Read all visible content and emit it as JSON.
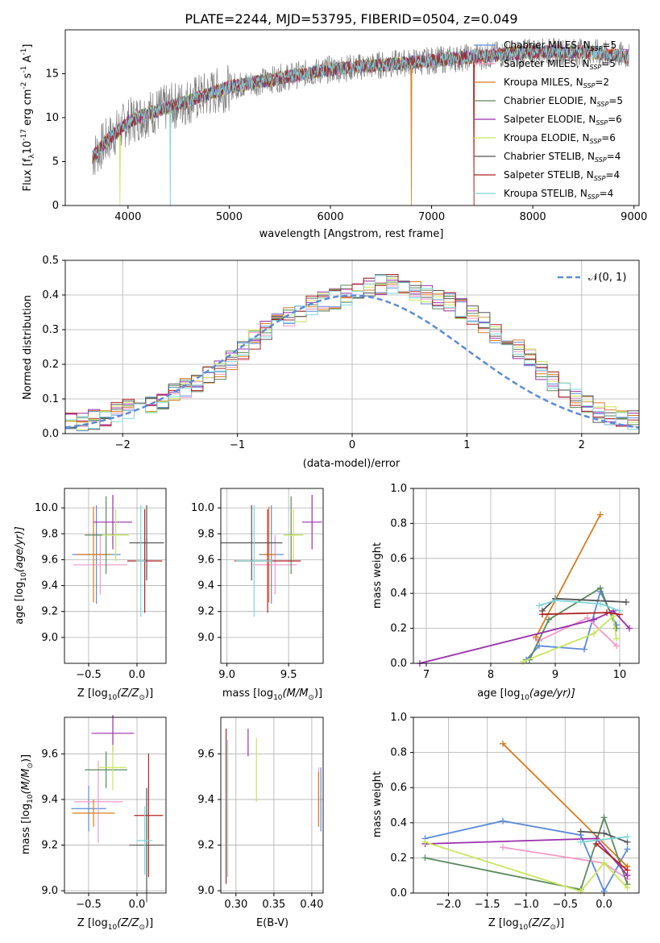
{
  "figure_title": "PLATE=2244, MJD=53795, FIBERID=0504, z=0.049",
  "colors": [
    "#5b8bd9",
    "#f299c8",
    "#d97c1c",
    "#5a8a5e",
    "#9b2fae",
    "#c8e65a",
    "#555555",
    "#b22222",
    "#7fd7d7"
  ],
  "chart_data": [
    {
      "type": "line",
      "name": "spectrum",
      "xlabel": "wavelength [Angstrom, rest frame]",
      "ylabel": "Flux [f",
      "ylabel_sub": "λ",
      "ylabel_mid": "10",
      "ylabel_sup1": "-17",
      "ylabel_tail": " erg cm",
      "ylabel_sup2": "-2",
      "ylabel_tail2": " s",
      "ylabel_sup3": "-1",
      "ylabel_tail3": " A",
      "ylabel_sup4": "-1",
      "ylabel_end": "]",
      "xlim": [
        3380,
        9050
      ],
      "ylim": [
        0,
        20
      ],
      "xticks": [
        "4000",
        "5000",
        "6000",
        "7000",
        "8000",
        "9000"
      ],
      "yticks": [
        "0",
        "5",
        "10",
        "15"
      ],
      "data_range_x": [
        3650,
        8950
      ],
      "grid": false,
      "legend_position": "top-right",
      "legend": [
        {
          "name": "Chabrier MILES, N",
          "sub": "SSP",
          "tail": "=5",
          "color": "#5b8bd9"
        },
        {
          "name": "Salpeter MILES, N",
          "sub": "SSP",
          "tail": "=5",
          "color": "#f299c8"
        },
        {
          "name": "Kroupa MILES, N",
          "sub": "SSP",
          "tail": "=2",
          "color": "#d97c1c"
        },
        {
          "name": "Chabrier ELODIE, N",
          "sub": "SSP",
          "tail": "=5",
          "color": "#5a8a5e"
        },
        {
          "name": "Salpeter ELODIE, N",
          "sub": "SSP",
          "tail": "=6",
          "color": "#9b2fae"
        },
        {
          "name": "Kroupa ELODIE, N",
          "sub": "SSP",
          "tail": "=6",
          "color": "#c8e65a"
        },
        {
          "name": "Chabrier STELIB, N",
          "sub": "SSP",
          "tail": "=4",
          "color": "#555555"
        },
        {
          "name": "Salpeter STELIB, N",
          "sub": "SSP",
          "tail": "=4",
          "color": "#b22222"
        },
        {
          "name": "Kroupa STELIB, N",
          "sub": "SSP",
          "tail": "=4",
          "color": "#7fd7d7"
        }
      ],
      "model_cutoff_x": {
        "Kroupa ELODIE": 3920,
        "Kroupa STELIB": 4420,
        "Kroupa MILES": 6800,
        "Salpeter STELIB": 7420
      },
      "continuum": {
        "x": [
          3650,
          3800,
          4000,
          4200,
          4500,
          5000,
          5500,
          6000,
          6500,
          7000,
          7500,
          8000,
          8500,
          8950
        ],
        "y": [
          5.5,
          7.5,
          9.5,
          10.5,
          11.5,
          13.5,
          14.5,
          15.5,
          16.0,
          16.5,
          17.0,
          17.5,
          17.5,
          17.0
        ]
      }
    },
    {
      "type": "line",
      "name": "residual-histogram",
      "xlabel": "(data-model)/error",
      "ylabel": "Normed distribution",
      "xlim": [
        -2.5,
        2.5
      ],
      "ylim": [
        0,
        0.5
      ],
      "xticks": [
        "−2",
        "−1",
        "0",
        "1",
        "2"
      ],
      "yticks": [
        "0.0",
        "0.1",
        "0.2",
        "0.3",
        "0.4",
        "0.5"
      ],
      "grid": true,
      "legend_position": "top-right",
      "legend_label": "𝒩(0, 1)",
      "bin_width": 0.1,
      "bins_start": -2.5,
      "histogram": [
        0.03,
        0.03,
        0.04,
        0.05,
        0.06,
        0.07,
        0.07,
        0.08,
        0.1,
        0.12,
        0.13,
        0.15,
        0.17,
        0.18,
        0.21,
        0.24,
        0.27,
        0.3,
        0.32,
        0.34,
        0.35,
        0.37,
        0.38,
        0.39,
        0.4,
        0.41,
        0.42,
        0.43,
        0.43,
        0.42,
        0.41,
        0.4,
        0.39,
        0.38,
        0.36,
        0.34,
        0.32,
        0.29,
        0.26,
        0.24,
        0.22,
        0.18,
        0.15,
        0.13,
        0.1,
        0.08,
        0.06,
        0.05,
        0.05,
        0.04
      ]
    },
    {
      "type": "scatter",
      "name": "age-vs-Z",
      "xlabel": "Z [log",
      "xlabel_sub": "10",
      "xlabel_tail": "(Z/Z",
      "xlabel_sub2": "⊙",
      "xlabel_end": ")]",
      "ylabel": "age  [log",
      "ylabel_sub": "10",
      "ylabel_tail": "(age/yr)]",
      "xlim": [
        -0.75,
        0.3
      ],
      "ylim": [
        8.8,
        10.15
      ],
      "xticks": [
        "−0.5",
        "0.0"
      ],
      "xtick_values": [
        -0.5,
        0.0
      ],
      "yticks": [
        "9.0",
        "9.2",
        "9.4",
        "9.6",
        "9.8",
        "10.0"
      ],
      "ytick_values": [
        9.0,
        9.2,
        9.4,
        9.6,
        9.8,
        10.0
      ],
      "grid": true,
      "points": [
        {
          "x": -0.42,
          "xerr": 0.25,
          "y": 9.64,
          "yerr": 0.38,
          "c": 0
        },
        {
          "x": -0.38,
          "xerr": 0.28,
          "y": 9.56,
          "yerr": 0.23,
          "c": 1
        },
        {
          "x": -0.45,
          "xerr": 0.18,
          "y": 9.64,
          "yerr": 0.37,
          "c": 2
        },
        {
          "x": -0.32,
          "xerr": 0.22,
          "y": 9.79,
          "yerr": 0.3,
          "c": 3
        },
        {
          "x": -0.25,
          "xerr": 0.2,
          "y": 9.89,
          "yerr": 0.21,
          "c": 4
        },
        {
          "x": -0.22,
          "xerr": 0.14,
          "y": 9.79,
          "yerr": 0.2,
          "c": 5
        },
        {
          "x": 0.1,
          "xerr": 0.18,
          "y": 9.73,
          "yerr": 0.29,
          "c": 6
        },
        {
          "x": 0.08,
          "xerr": 0.18,
          "y": 9.59,
          "yerr": 0.4,
          "c": 7
        },
        {
          "x": 0.04,
          "xerr": 0.05,
          "y": 9.59,
          "yerr": 0.43,
          "c": 8
        }
      ]
    },
    {
      "type": "scatter",
      "name": "age-vs-mass",
      "xlabel": "mass [log",
      "xlabel_sub": "10",
      "xlabel_tail": "(M/M",
      "xlabel_sub2": "⊙",
      "xlabel_end": ")]",
      "xlim": [
        8.95,
        9.78
      ],
      "ylim": [
        8.8,
        10.15
      ],
      "xticks": [
        "9.0",
        "9.5"
      ],
      "xtick_values": [
        9.0,
        9.5
      ],
      "yticks": [
        "9.0",
        "9.2",
        "9.4",
        "9.6",
        "9.8",
        "10.0"
      ],
      "ytick_values": [
        9.0,
        9.2,
        9.4,
        9.6,
        9.8,
        10.0
      ],
      "grid": true,
      "points": [
        {
          "x": 9.36,
          "xerr": 0.1,
          "y": 9.64,
          "yerr": 0.38,
          "c": 0
        },
        {
          "x": 9.39,
          "xerr": 0.18,
          "y": 9.56,
          "yerr": 0.23,
          "c": 1
        },
        {
          "x": 9.34,
          "xerr": 0.06,
          "y": 9.64,
          "yerr": 0.37,
          "c": 2
        },
        {
          "x": 9.52,
          "xerr": 0.06,
          "y": 9.79,
          "yerr": 0.3,
          "c": 3
        },
        {
          "x": 9.69,
          "xerr": 0.08,
          "y": 9.89,
          "yerr": 0.21,
          "c": 4
        },
        {
          "x": 9.54,
          "xerr": 0.08,
          "y": 9.79,
          "yerr": 0.2,
          "c": 5
        },
        {
          "x": 9.2,
          "xerr": 0.25,
          "y": 9.73,
          "yerr": 0.29,
          "c": 6
        },
        {
          "x": 9.33,
          "xerr": 0.27,
          "y": 9.59,
          "yerr": 0.4,
          "c": 7
        },
        {
          "x": 9.22,
          "xerr": 0.15,
          "y": 9.59,
          "yerr": 0.43,
          "c": 8
        }
      ]
    },
    {
      "type": "line",
      "name": "mass-weight-vs-age",
      "xlabel": "age  [log",
      "xlabel_sub": "10",
      "xlabel_tail": "(age/yr)]",
      "ylabel": "mass weight",
      "xlim": [
        6.8,
        10.3
      ],
      "ylim": [
        0,
        1
      ],
      "xticks": [
        "7",
        "8",
        "9",
        "10"
      ],
      "xtick_values": [
        7,
        8,
        9,
        10
      ],
      "yticks": [
        "0.0",
        "0.2",
        "0.4",
        "0.6",
        "0.8",
        "1.0"
      ],
      "ytick_values": [
        0,
        0.2,
        0.4,
        0.6,
        0.8,
        1.0
      ],
      "grid": true,
      "series": [
        {
          "c": 0,
          "x": [
            8.55,
            8.75,
            9.45,
            9.7,
            9.95
          ],
          "y": [
            0.02,
            0.1,
            0.08,
            0.41,
            0.22
          ]
        },
        {
          "c": 1,
          "x": [
            8.7,
            8.75,
            9.5,
            9.95
          ],
          "y": [
            0.14,
            0.13,
            0.26,
            0.1
          ]
        },
        {
          "c": 2,
          "x": [
            8.7,
            9.7
          ],
          "y": [
            0.15,
            0.85
          ]
        },
        {
          "c": 3,
          "x": [
            8.6,
            8.9,
            9.7,
            9.95
          ],
          "y": [
            0.02,
            0.25,
            0.43,
            0.2
          ]
        },
        {
          "c": 4,
          "x": [
            6.9,
            9.6,
            9.9,
            10.15
          ],
          "y": [
            0.0,
            0.25,
            0.3,
            0.2
          ]
        },
        {
          "c": 5,
          "x": [
            8.5,
            9.6,
            9.9,
            9.95
          ],
          "y": [
            0.01,
            0.17,
            0.27,
            0.14
          ]
        },
        {
          "c": 6,
          "x": [
            8.8,
            9.0,
            10.1
          ],
          "y": [
            0.3,
            0.37,
            0.35
          ]
        },
        {
          "c": 7,
          "x": [
            8.8,
            9.8,
            10.0
          ],
          "y": [
            0.28,
            0.29,
            0.28
          ]
        },
        {
          "c": 8,
          "x": [
            8.75,
            9.0,
            9.7,
            10.0
          ],
          "y": [
            0.33,
            0.36,
            0.34,
            0.3
          ]
        }
      ]
    },
    {
      "type": "scatter",
      "name": "mass-vs-Z",
      "xlabel": "Z [log",
      "xlabel_sub": "10",
      "xlabel_tail": "(Z/Z",
      "xlabel_sub2": "⊙",
      "xlabel_end": ")]",
      "ylabel": "mass [log",
      "ylabel_sub": "10",
      "ylabel_tail": "(M/M",
      "ylabel_sub2": "⊙",
      "ylabel_end": ")]",
      "xlim": [
        -0.75,
        0.3
      ],
      "ylim": [
        8.99,
        9.76
      ],
      "xticks": [
        "−0.5",
        "0.0"
      ],
      "xtick_values": [
        -0.5,
        0.0
      ],
      "yticks": [
        "9.0",
        "9.2",
        "9.4",
        "9.6"
      ],
      "ytick_values": [
        9.0,
        9.2,
        9.4,
        9.6
      ],
      "grid": true,
      "points": [
        {
          "x": -0.5,
          "xerr": 0.18,
          "y": 9.36,
          "yerr": 0.1,
          "c": 0
        },
        {
          "x": -0.4,
          "xerr": 0.25,
          "y": 9.39,
          "yerr": 0.18,
          "c": 1
        },
        {
          "x": -0.45,
          "xerr": 0.22,
          "y": 9.34,
          "yerr": 0.06,
          "c": 2
        },
        {
          "x": -0.32,
          "xerr": 0.22,
          "y": 9.53,
          "yerr": 0.08,
          "c": 3
        },
        {
          "x": -0.25,
          "xerr": 0.22,
          "y": 9.69,
          "yerr": 0.08,
          "c": 4
        },
        {
          "x": -0.25,
          "xerr": 0.14,
          "y": 9.54,
          "yerr": 0.1,
          "c": 5
        },
        {
          "x": 0.1,
          "xerr": 0.18,
          "y": 9.2,
          "yerr": 0.25,
          "c": 6
        },
        {
          "x": 0.12,
          "xerr": 0.15,
          "y": 9.33,
          "yerr": 0.27,
          "c": 7
        },
        {
          "x": 0.08,
          "xerr": 0.08,
          "y": 9.22,
          "yerr": 0.15,
          "c": 8
        }
      ]
    },
    {
      "type": "scatter",
      "name": "mass-vs-EBV",
      "xlabel": "E(B-V)",
      "xlim": [
        0.28,
        0.415
      ],
      "ylim": [
        8.99,
        9.76
      ],
      "xticks": [
        "0.30",
        "0.35",
        "0.40"
      ],
      "xtick_values": [
        0.3,
        0.35,
        0.4
      ],
      "yticks": [
        "9.0",
        "9.2",
        "9.4",
        "9.6"
      ],
      "ytick_values": [
        9.0,
        9.2,
        9.4,
        9.6
      ],
      "grid": true,
      "points": [
        {
          "x": 0.409,
          "y": 9.42,
          "yerr": 0.12,
          "c": 1
        },
        {
          "x": 0.409,
          "y": 9.4,
          "yerr": 0.12,
          "c": 2
        },
        {
          "x": 0.316,
          "y": 9.65,
          "yerr": 0.06,
          "c": 4
        },
        {
          "x": 0.327,
          "y": 9.53,
          "yerr": 0.14,
          "c": 5
        },
        {
          "x": 0.287,
          "y": 9.37,
          "yerr": 0.34,
          "c": 7
        },
        {
          "x": 0.289,
          "y": 9.36,
          "yerr": 0.3,
          "c": 8
        },
        {
          "x": 0.412,
          "y": 9.4,
          "yerr": 0.14,
          "c": 0
        }
      ]
    },
    {
      "type": "line",
      "name": "mass-weight-vs-Z",
      "xlabel": "Z [log",
      "xlabel_sub": "10",
      "xlabel_tail": "(Z/Z",
      "xlabel_sub2": "⊙",
      "xlabel_end": ")]",
      "ylabel": "mass weight",
      "xlim": [
        -2.45,
        0.45
      ],
      "ylim": [
        0,
        1
      ],
      "xticks": [
        "−2.0",
        "−1.5",
        "−1.0",
        "−0.5",
        "0.0"
      ],
      "xtick_values": [
        -2.0,
        -1.5,
        -1.0,
        -0.5,
        0.0
      ],
      "yticks": [
        "0.0",
        "0.2",
        "0.4",
        "0.6",
        "0.8",
        "1.0"
      ],
      "ytick_values": [
        0,
        0.2,
        0.4,
        0.6,
        0.8,
        1.0
      ],
      "grid": true,
      "series": [
        {
          "c": 0,
          "x": [
            -2.3,
            -1.3,
            -0.3,
            0.0,
            0.3
          ],
          "y": [
            0.31,
            0.41,
            0.33,
            0.01,
            0.25
          ]
        },
        {
          "c": 1,
          "x": [
            -1.3,
            0.0,
            0.3
          ],
          "y": [
            0.26,
            0.17,
            0.08
          ]
        },
        {
          "c": 2,
          "x": [
            -1.3,
            0.3
          ],
          "y": [
            0.85,
            0.15
          ]
        },
        {
          "c": 3,
          "x": [
            -2.3,
            -0.3,
            0.0,
            0.3
          ],
          "y": [
            0.2,
            0.02,
            0.43,
            0.05
          ]
        },
        {
          "c": 4,
          "x": [
            -2.3,
            -0.1,
            0.3
          ],
          "y": [
            0.28,
            0.31,
            0.1
          ]
        },
        {
          "c": 5,
          "x": [
            -2.3,
            -0.3,
            0.0,
            0.3
          ],
          "y": [
            0.29,
            0.01,
            0.17,
            0.03
          ]
        },
        {
          "c": 6,
          "x": [
            -0.3,
            0.0,
            0.3
          ],
          "y": [
            0.35,
            0.34,
            0.29
          ]
        },
        {
          "c": 7,
          "x": [
            -0.1,
            0.3
          ],
          "y": [
            0.28,
            0.13
          ]
        },
        {
          "c": 8,
          "x": [
            -0.3,
            0.3
          ],
          "y": [
            0.29,
            0.32
          ]
        }
      ]
    }
  ]
}
